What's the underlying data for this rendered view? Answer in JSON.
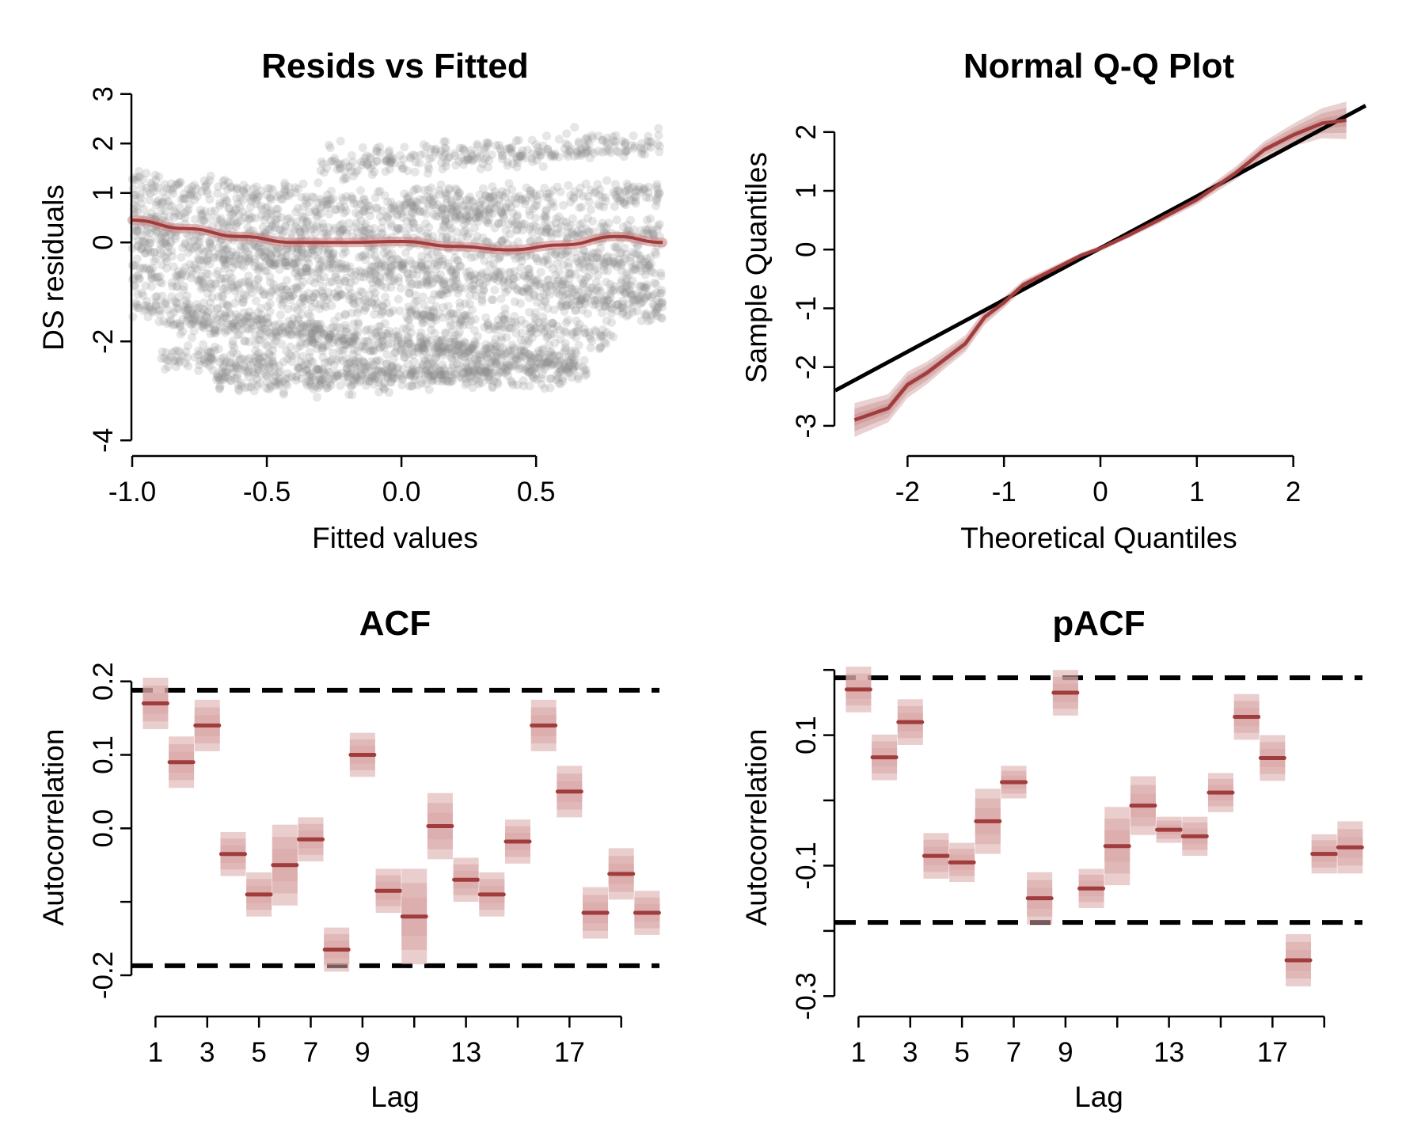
{
  "chart_data": [
    {
      "type": "scatter",
      "title": "Resids vs Fitted",
      "xlabel": "Fitted values",
      "ylabel": "DS residuals",
      "xlim": [
        -1.0,
        0.97
      ],
      "ylim": [
        -4.3,
        3.3
      ],
      "xticks": [
        -1.0,
        -0.5,
        0.0,
        0.5
      ],
      "xtick_labels": [
        "-1.0",
        "-0.5",
        "0.0",
        "0.5"
      ],
      "yticks": [
        -4,
        -2,
        0,
        1,
        2,
        3
      ],
      "ytick_labels": [
        "-4",
        "-2",
        "0",
        "1",
        "2",
        "3"
      ],
      "point_color": "#8c8c8c",
      "smooth_color": "#a03c3c",
      "bands": [
        {
          "x0": -1.0,
          "x1": 0.97,
          "y0": 1.2,
          "slope": -0.55
        },
        {
          "x0": -1.0,
          "x1": 0.97,
          "y0": 0.7,
          "slope": -0.6
        },
        {
          "x0": -1.0,
          "x1": 0.97,
          "y0": 0.3,
          "slope": -0.7
        },
        {
          "x0": -1.0,
          "x1": 0.97,
          "y0": -0.1,
          "slope": -0.65
        },
        {
          "x0": -1.0,
          "x1": 0.8,
          "y0": -0.6,
          "slope": -0.75
        },
        {
          "x0": -1.0,
          "x1": 0.7,
          "y0": -1.2,
          "slope": -0.8
        },
        {
          "x0": -0.9,
          "x1": 0.65,
          "y0": -1.6,
          "slope": -0.5
        },
        {
          "x0": -0.9,
          "x1": 0.6,
          "y0": -2.3,
          "slope": -0.3
        },
        {
          "x0": -0.3,
          "x1": 0.97,
          "y0": 1.6,
          "slope": 0.3
        },
        {
          "x0": 0.0,
          "x1": 0.97,
          "y0": 0.8,
          "slope": 0.2
        },
        {
          "x0": -0.7,
          "x1": 0.4,
          "y0": -2.8,
          "slope": 0.1
        }
      ],
      "smooth_x": [
        -1.0,
        -0.8,
        -0.6,
        -0.4,
        -0.2,
        0.0,
        0.2,
        0.4,
        0.6,
        0.8,
        0.97
      ],
      "smooth_y": [
        0.45,
        0.28,
        0.12,
        0.0,
        0.0,
        0.02,
        -0.08,
        -0.15,
        -0.05,
        0.12,
        0.0
      ]
    },
    {
      "type": "line",
      "title": "Normal Q-Q Plot",
      "xlabel": "Theoretical Quantiles",
      "ylabel": "Sample Quantiles",
      "xlim": [
        -2.75,
        2.75
      ],
      "ylim": [
        -3.5,
        2.9
      ],
      "xticks": [
        -2,
        -1,
        0,
        1,
        2
      ],
      "xtick_labels": [
        "-2",
        "-1",
        "0",
        "1",
        "2"
      ],
      "yticks": [
        -3,
        -2,
        -1,
        0,
        1,
        2
      ],
      "ytick_labels": [
        "-3",
        "-2",
        "-1",
        "0",
        "1",
        "2"
      ],
      "reference_line": {
        "x": [
          -2.75,
          2.75
        ],
        "y": [
          -2.4,
          2.45
        ]
      },
      "reference_color": "#000000",
      "curve_color": "#a03c3c",
      "band_color": "#c07a7a",
      "qq_x": [
        -2.55,
        -2.2,
        -2.0,
        -1.8,
        -1.6,
        -1.4,
        -1.2,
        -1.0,
        -0.8,
        -0.5,
        -0.2,
        0.0,
        0.3,
        0.6,
        1.0,
        1.4,
        1.7,
        2.0,
        2.3,
        2.55
      ],
      "qq_y": [
        -2.9,
        -2.7,
        -2.3,
        -2.1,
        -1.85,
        -1.6,
        -1.15,
        -0.9,
        -0.6,
        -0.35,
        -0.1,
        0.02,
        0.25,
        0.5,
        0.85,
        1.3,
        1.7,
        1.95,
        2.15,
        2.2
      ],
      "qq_band": [
        0.18,
        0.15,
        0.14,
        0.12,
        0.1,
        0.09,
        0.08,
        0.06,
        0.05,
        0.04,
        0.03,
        0.03,
        0.03,
        0.04,
        0.05,
        0.07,
        0.09,
        0.12,
        0.16,
        0.2
      ]
    },
    {
      "type": "scatter",
      "title": "ACF",
      "xlabel": "Lag",
      "ylabel": "Autocorrelation",
      "xlim": [
        0.1,
        20.6
      ],
      "ylim": [
        -0.255,
        0.26
      ],
      "xticks": [
        1,
        3,
        5,
        7,
        9,
        13,
        17
      ],
      "xtick_labels": [
        "1",
        "3",
        "5",
        "7",
        "9",
        "13",
        "17"
      ],
      "minor_xticks": [
        11,
        15,
        19
      ],
      "yticks": [
        -0.2,
        0.0,
        0.1,
        0.2
      ],
      "ytick_labels": [
        "-0.2",
        "0.0",
        "0.1",
        "0.2"
      ],
      "extra_yticks": [
        -0.1
      ],
      "ci": [
        0.188,
        -0.187
      ],
      "lags": [
        1,
        2,
        3,
        4,
        5,
        6,
        7,
        8,
        9,
        10,
        11,
        12,
        13,
        14,
        15,
        16,
        17,
        18,
        19,
        20
      ],
      "values": [
        0.17,
        0.09,
        0.14,
        -0.035,
        -0.09,
        -0.05,
        -0.015,
        -0.165,
        0.1,
        -0.085,
        -0.12,
        0.003,
        -0.07,
        -0.09,
        -0.018,
        0.14,
        0.05,
        -0.115,
        -0.062,
        -0.115
      ],
      "halfwidth": [
        0.035,
        0.035,
        0.035,
        0.03,
        0.03,
        0.055,
        0.03,
        0.03,
        0.03,
        0.03,
        0.065,
        0.045,
        0.03,
        0.03,
        0.03,
        0.035,
        0.035,
        0.035,
        0.035,
        0.03
      ],
      "est_color": "#a03c3c",
      "band_color": "#d9a6a6"
    },
    {
      "type": "scatter",
      "title": "pACF",
      "xlabel": "Lag",
      "ylabel": "Autocorrelation",
      "xlim": [
        0.1,
        20.6
      ],
      "ylim": [
        -0.33,
        0.25
      ],
      "xticks": [
        1,
        3,
        5,
        7,
        9,
        13,
        17
      ],
      "xtick_labels": [
        "1",
        "3",
        "5",
        "7",
        "9",
        "13",
        "17"
      ],
      "minor_xticks": [
        11,
        15,
        19
      ],
      "yticks": [
        -0.3,
        -0.1,
        0.1
      ],
      "ytick_labels": [
        "-0.3",
        "-0.1",
        "0.1"
      ],
      "extra_yticks": [
        -0.2,
        0.0,
        0.2
      ],
      "ci": [
        0.188,
        -0.187
      ],
      "lags": [
        1,
        2,
        3,
        4,
        5,
        6,
        7,
        8,
        9,
        10,
        11,
        12,
        13,
        14,
        15,
        16,
        17,
        18,
        19,
        20
      ],
      "values": [
        0.17,
        0.066,
        0.12,
        -0.085,
        -0.095,
        -0.032,
        0.028,
        -0.15,
        0.165,
        -0.135,
        -0.07,
        -0.008,
        -0.045,
        -0.055,
        0.012,
        0.128,
        0.065,
        -0.245,
        -0.082,
        -0.072
      ],
      "halfwidth": [
        0.035,
        0.035,
        0.035,
        0.035,
        0.03,
        0.05,
        0.025,
        0.04,
        0.035,
        0.03,
        0.06,
        0.045,
        0.02,
        0.03,
        0.03,
        0.035,
        0.035,
        0.04,
        0.03,
        0.04
      ],
      "est_color": "#a03c3c",
      "band_color": "#d9a6a6"
    }
  ]
}
